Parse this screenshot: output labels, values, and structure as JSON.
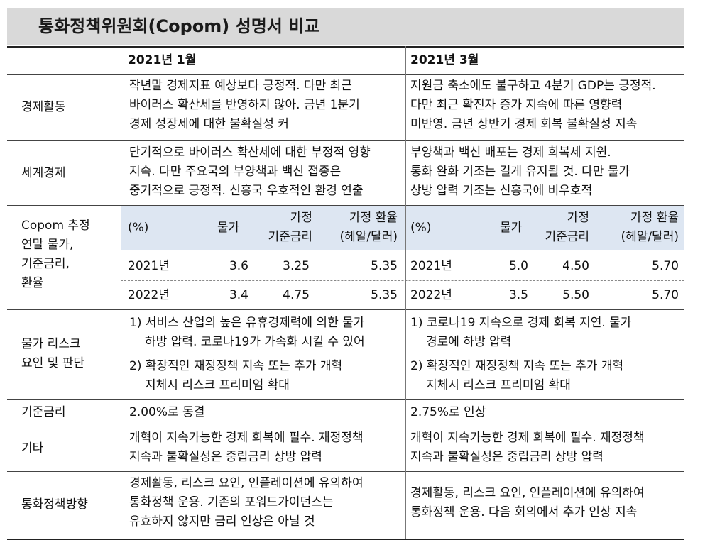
{
  "title": "통화정책위원회(Copom) 성명서 비교",
  "columns": {
    "jan": "2021년 1월",
    "mar": "2021년 3월"
  },
  "rows": {
    "econ": {
      "label": "경제활동",
      "jan": [
        "작년말 경제지표 예상보다 긍정적. 다만 최근",
        "바이러스 확산세를 반영하지 않아. 금년 1분기",
        "경제 성장세에 대한 불확실성 커"
      ],
      "mar": [
        "지원금 축소에도 불구하고 4분기 GDP는 긍정적.",
        "다만 최근 확진자 증가 지속에 따른 영향력",
        "미반영. 금년 상반기 경제 회복 불확실성 지속"
      ]
    },
    "world": {
      "label": "세계경제",
      "jan": [
        "단기적으로 바이러스 확산세에 대한 부정적 영향",
        "지속. 다만 주요국의 부양책과 백신 접종은",
        "중기적으로 긍정적. 신흥국 우호적인 환경 연출"
      ],
      "mar": [
        "부양책과 백신 배포는 경제 회복세 지원.",
        "통화 완화 기조는 길게 유지될 것. 다만 물가",
        "상방 압력 기조는 신흥국에 비우호적"
      ]
    },
    "forecast": {
      "label": [
        "Copom 추정",
        "연말 물가,",
        "기준금리,",
        "환율"
      ],
      "header": {
        "unit": "(%)",
        "price": "물가",
        "rate1": "가정",
        "rate2": "기준금리",
        "fx1": "가정 환율",
        "fx2": "(헤알/달러)"
      },
      "jan": [
        {
          "year": "2021년",
          "price": "3.6",
          "rate": "3.25",
          "fx": "5.35"
        },
        {
          "year": "2022년",
          "price": "3.4",
          "rate": "4.75",
          "fx": "5.35"
        }
      ],
      "mar": [
        {
          "year": "2021년",
          "price": "5.0",
          "rate": "4.50",
          "fx": "5.70"
        },
        {
          "year": "2022년",
          "price": "3.5",
          "rate": "5.50",
          "fx": "5.70"
        }
      ]
    },
    "risk": {
      "label": [
        "물가 리스크",
        "요인 및 판단"
      ],
      "jan": [
        "1) 서비스 산업의 높은 유휴경제력에 의한 물가",
        "하방 압력. 코로나19가 가속화 시킬 수 있어",
        "2) 확장적인 재정정책 지속 또는 추가 개혁",
        "지체시 리스크 프리미엄 확대"
      ],
      "mar": [
        "1) 코로나19 지속으로 경제 회복 지연. 물가",
        "경로에 하방 압력",
        "2) 확장적인 재정정책 지속 또는 추가 개혁",
        "지체시 리스크 프리미엄 확대"
      ]
    },
    "base": {
      "label": "기준금리",
      "jan": "2.00%로 동결",
      "mar": "2.75%로 인상"
    },
    "etc": {
      "label": "기타",
      "jan": [
        "개혁이 지속가능한 경제 회복에 필수. 재정정책",
        "지속과 불확실성은 중립금리 상방 압력"
      ],
      "mar": [
        "개혁이 지속가능한 경제 회복에 필수. 재정정책",
        "지속과 불확실성은 중립금리 상방 압력"
      ]
    },
    "policy": {
      "label": "통화정책방향",
      "jan": [
        "경제활동, 리스크 요인, 인플레이션에 유의하여",
        "통화정책 운용. 기존의 포워드가이던스는",
        "유효하지 않지만 금리 인상은 아닐 것"
      ],
      "mar": [
        "경제활동, 리스크 요인, 인플레이션에 유의하여",
        "통화정책 운용. 다음 회의에서 추가 인상 지속"
      ]
    }
  }
}
